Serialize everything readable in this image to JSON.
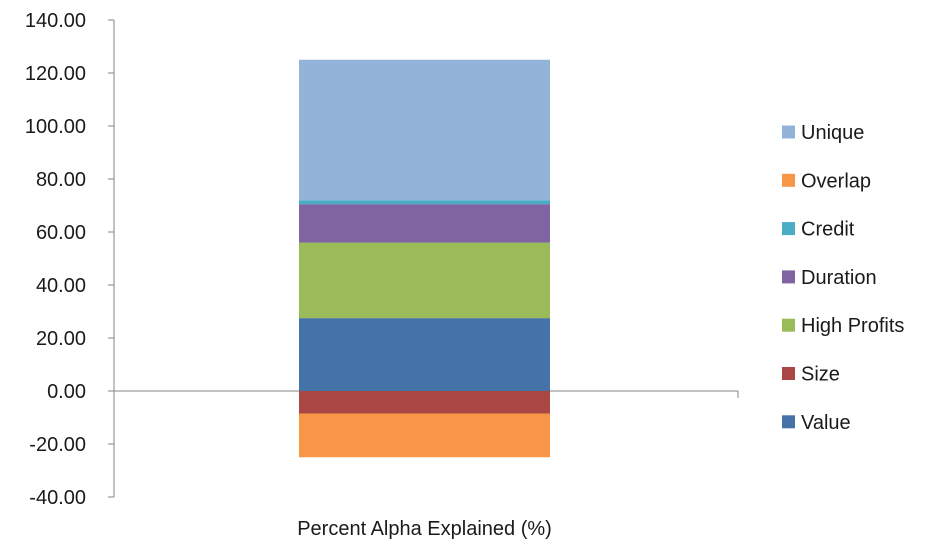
{
  "chart_data": {
    "type": "bar",
    "stacked": true,
    "categories": [
      "Percent Alpha Explained (%)"
    ],
    "ylim": [
      -40,
      140
    ],
    "yticks": [
      "-40.00",
      "-20.00",
      "0.00",
      "20.00",
      "40.00",
      "60.00",
      "80.00",
      "100.00",
      "120.00",
      "140.00"
    ],
    "grid": false,
    "legend_position": "right",
    "series": [
      {
        "name": "Value",
        "values": [
          27.5
        ],
        "color": "#4572A7"
      },
      {
        "name": "Size",
        "values": [
          -8.5
        ],
        "color": "#AA4643"
      },
      {
        "name": "High Profits",
        "values": [
          28.5
        ],
        "color": "#9BBB59"
      },
      {
        "name": "Duration",
        "values": [
          14.5
        ],
        "color": "#8064A2"
      },
      {
        "name": "Credit",
        "values": [
          1.5
        ],
        "color": "#4BACC6"
      },
      {
        "name": "Overlap",
        "values": [
          -16.5
        ],
        "color": "#F79646"
      },
      {
        "name": "Unique",
        "values": [
          53.0
        ],
        "color": "#93B3D8"
      }
    ],
    "legend_order": [
      "Unique",
      "Overlap",
      "Credit",
      "Duration",
      "High Profits",
      "Size",
      "Value"
    ]
  },
  "colors": {
    "axis": "#868686"
  }
}
